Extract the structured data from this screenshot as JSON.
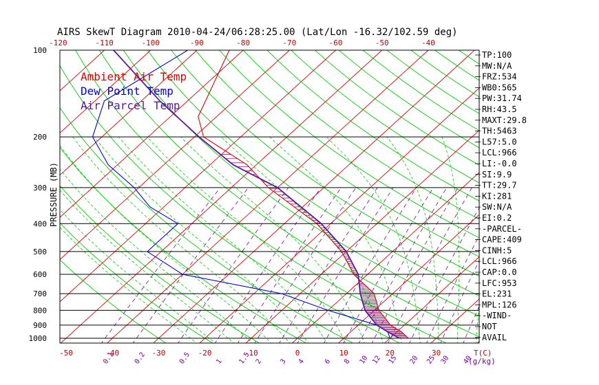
{
  "chart_data": {
    "type": "line",
    "title": "AIRS SkewT Diagram 2010-04-24/06:28:25.00 (Lat/Lon -16.32/102.59 deg)",
    "ylabel": "PRESSURE (MB)",
    "xlabel_bottom_unit": "T(C)",
    "mixing_ratio_unit": "(g/kg)",
    "pressure_ticks": [
      100,
      200,
      300,
      400,
      500,
      600,
      700,
      800,
      900,
      1000
    ],
    "top_temp_ticks": [
      -120,
      -110,
      -100,
      -90,
      -80,
      -70,
      -60,
      -50,
      -40
    ],
    "bottom_temp_ticks": [
      -50,
      -40,
      -30,
      -20,
      -10,
      0,
      10,
      20,
      30
    ],
    "mixing_ratio_labels": [
      "0.1",
      "0.2",
      "0.5",
      "1",
      "1.5",
      "2",
      "3",
      "4",
      "6",
      "8",
      "10",
      "12",
      "15",
      "20",
      "25",
      "30",
      "40"
    ],
    "legend": [
      {
        "name": "Ambient Air Temp",
        "color": "#dd0000"
      },
      {
        "name": "Dew Point Temp",
        "color": "#0000dd"
      },
      {
        "name": "Air Parcel Temp",
        "color": "#5a1a9a"
      }
    ],
    "series": [
      {
        "name": "Ambient Air Temp",
        "color": "#dd0000",
        "pressure": [
          100,
          170,
          200,
          250,
          300,
          400,
          500,
          600,
          700,
          800,
          900,
          950,
          1000
        ],
        "temperature": [
          -83,
          -74,
          -68,
          -52,
          -42,
          -23,
          -11,
          -3,
          6,
          11,
          17,
          21,
          24
        ]
      },
      {
        "name": "Dew Point Temp",
        "color": "#0000dd",
        "pressure": [
          100,
          150,
          200,
          250,
          300,
          350,
          400,
          500,
          600,
          700,
          800,
          900,
          950,
          1000
        ],
        "temperature": [
          -92,
          -98,
          -92,
          -82,
          -71,
          -63,
          -53,
          -53,
          -40,
          -14,
          0,
          14,
          18,
          20
        ]
      },
      {
        "name": "Air Parcel Temp",
        "color": "#5a1a9a",
        "pressure": [
          100,
          150,
          200,
          250,
          300,
          400,
          500,
          600,
          700,
          800,
          900,
          950,
          1000
        ],
        "temperature": [
          -108,
          -86,
          -69,
          -55,
          -40,
          -22,
          -10,
          -2,
          3,
          8,
          14,
          18,
          22
        ]
      }
    ],
    "indices": [
      "TP:100",
      "MW:N/A",
      "FRZ:534",
      "WB0:565",
      "PW:31.74",
      "RH:43.5",
      "MAXT:29.8",
      "TH:5463",
      "L57:5.0",
      "LCL:966",
      "LI:-0.0",
      "SI:9.9",
      "TT:29.7",
      "KI:281",
      "SW:N/A",
      "EI:0.2",
      "-PARCEL-",
      "CAPE:409",
      "CINH:5",
      "LCL:966",
      "CAP:0.0",
      "LFC:953",
      "EL:231",
      "MPL:126",
      "-WIND-",
      "NOT",
      "AVAIL"
    ]
  },
  "colors": {
    "isotherm": "#dd0000",
    "dry_adiabat": "#00cc00",
    "moist_adiabat": "#00cc00",
    "mixing_ratio": "#7a00a0",
    "isobar": "#000000",
    "frame": "#000000"
  }
}
